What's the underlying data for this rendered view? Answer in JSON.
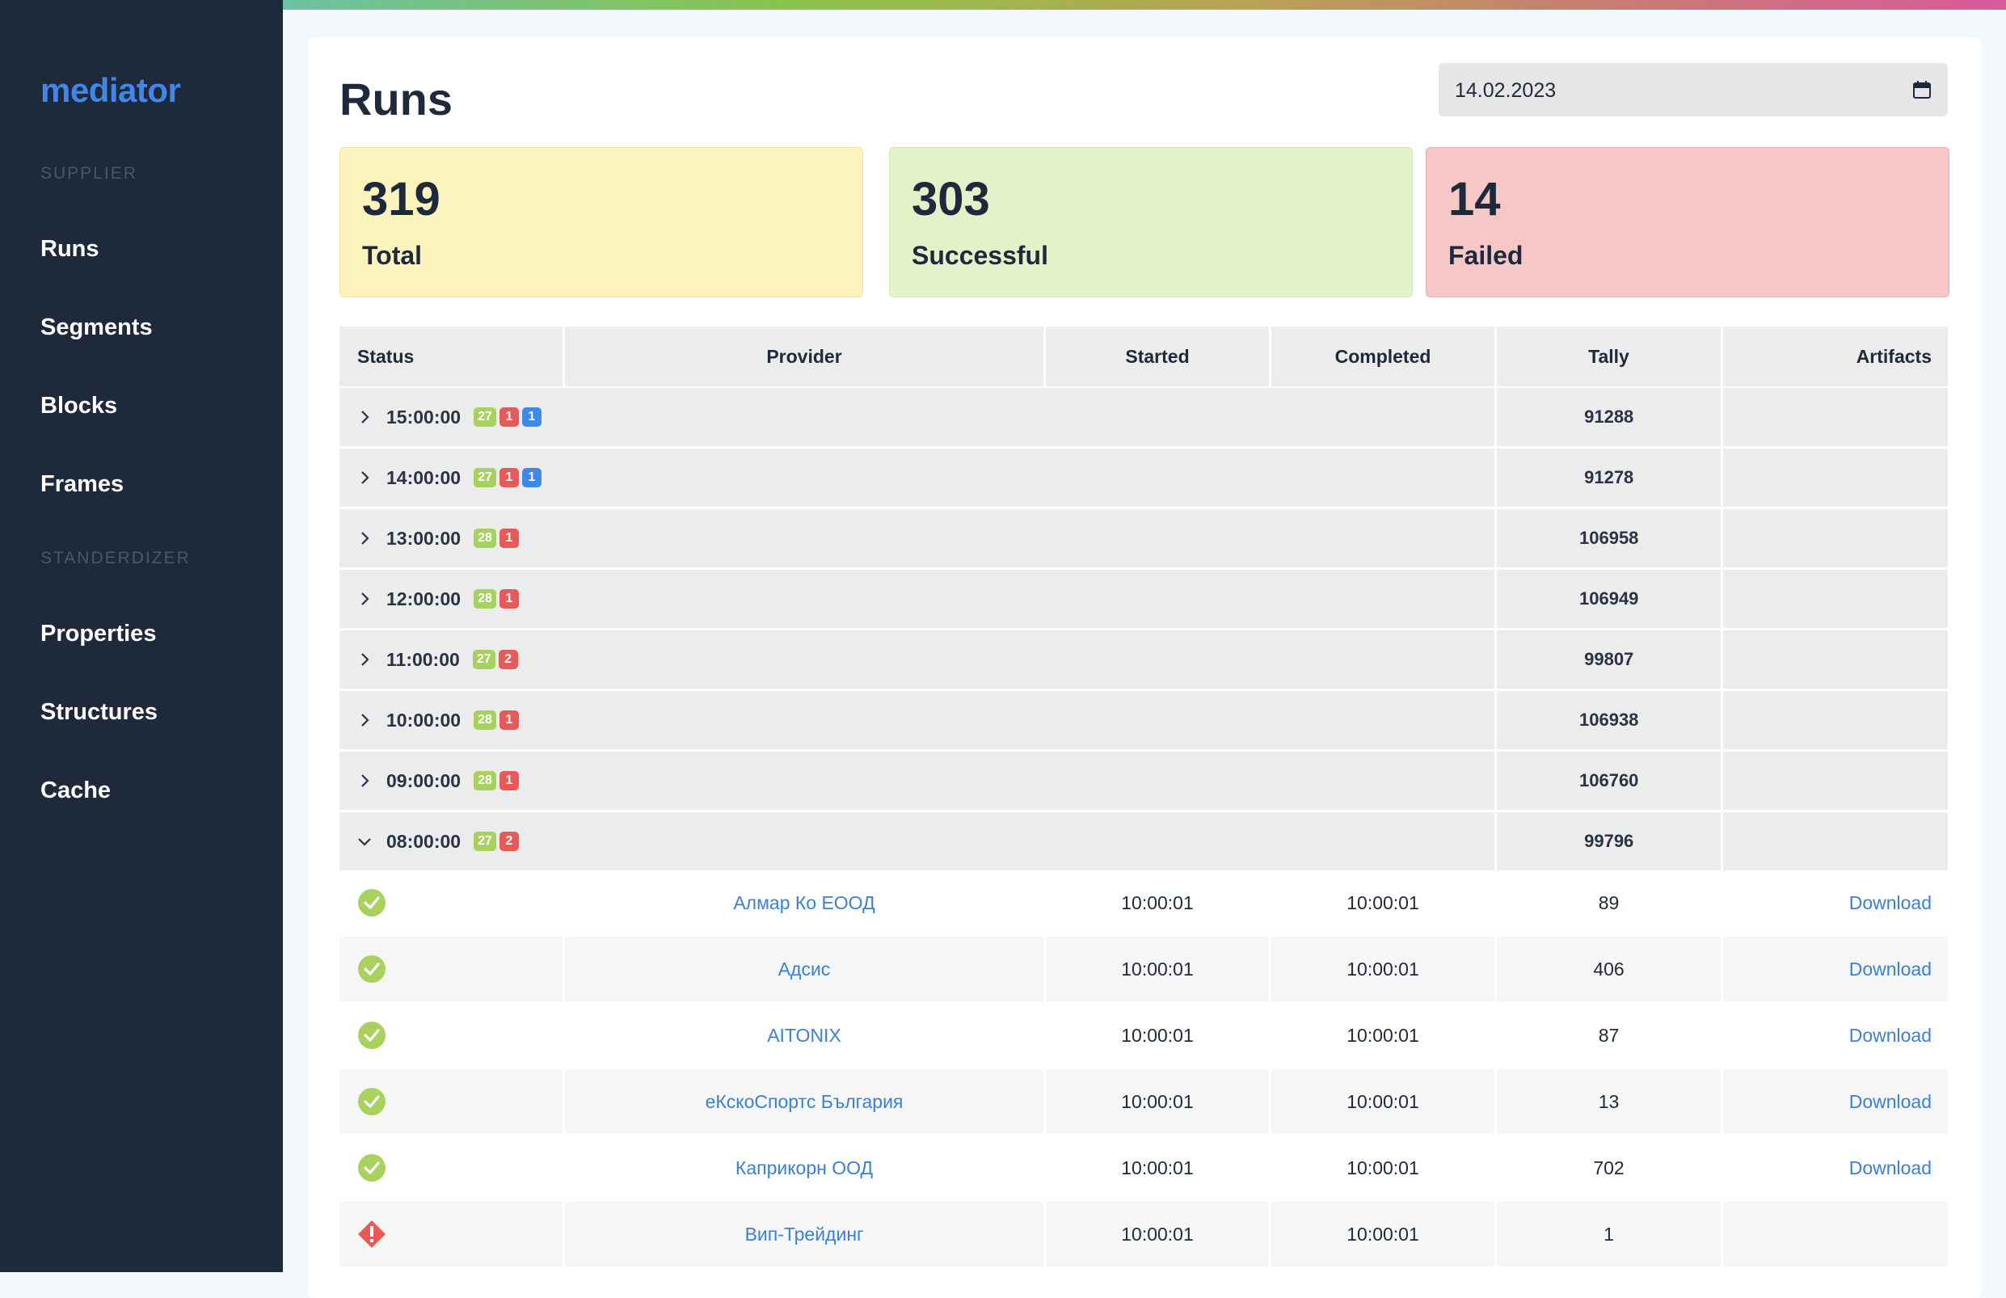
{
  "app": {
    "name": "mediator"
  },
  "sidebar": {
    "sections": [
      {
        "title": "SUPPLIER",
        "items": [
          "Runs",
          "Segments",
          "Blocks",
          "Frames"
        ]
      },
      {
        "title": "STANDERDIZER",
        "items": [
          "Properties",
          "Structures",
          "Cache"
        ]
      }
    ]
  },
  "page": {
    "title": "Runs",
    "date": "14.02.2023",
    "date_icon": "calendar-icon"
  },
  "stats": {
    "total": {
      "value": "319",
      "label": "Total"
    },
    "successful": {
      "value": "303",
      "label": "Successful"
    },
    "failed": {
      "value": "14",
      "label": "Failed"
    }
  },
  "table": {
    "columns": [
      "Status",
      "Provider",
      "Started",
      "Completed",
      "Tally",
      "Artifacts"
    ],
    "groups": [
      {
        "time": "15:00:00",
        "success": "27",
        "failed": "1",
        "other": "1",
        "tally": "91288",
        "expanded": false
      },
      {
        "time": "14:00:00",
        "success": "27",
        "failed": "1",
        "other": "1",
        "tally": "91278",
        "expanded": false
      },
      {
        "time": "13:00:00",
        "success": "28",
        "failed": "1",
        "other": "",
        "tally": "106958",
        "expanded": false
      },
      {
        "time": "12:00:00",
        "success": "28",
        "failed": "1",
        "other": "",
        "tally": "106949",
        "expanded": false
      },
      {
        "time": "11:00:00",
        "success": "27",
        "failed": "2",
        "other": "",
        "tally": "99807",
        "expanded": false
      },
      {
        "time": "10:00:00",
        "success": "28",
        "failed": "1",
        "other": "",
        "tally": "106938",
        "expanded": false
      },
      {
        "time": "09:00:00",
        "success": "28",
        "failed": "1",
        "other": "",
        "tally": "106760",
        "expanded": false
      },
      {
        "time": "08:00:00",
        "success": "27",
        "failed": "2",
        "other": "",
        "tally": "99796",
        "expanded": true
      }
    ],
    "runs": [
      {
        "status": "success",
        "provider": "Алмар Ко ЕООД",
        "started": "10:00:01",
        "completed": "10:00:01",
        "tally": "89",
        "artifact": "Download"
      },
      {
        "status": "success",
        "provider": "Адсис",
        "started": "10:00:01",
        "completed": "10:00:01",
        "tally": "406",
        "artifact": "Download"
      },
      {
        "status": "success",
        "provider": "AITONIX",
        "started": "10:00:01",
        "completed": "10:00:01",
        "tally": "87",
        "artifact": "Download"
      },
      {
        "status": "success",
        "provider": "еКскоСпортс България",
        "started": "10:00:01",
        "completed": "10:00:01",
        "tally": "13",
        "artifact": "Download"
      },
      {
        "status": "success",
        "provider": "Каприкорн ООД",
        "started": "10:00:01",
        "completed": "10:00:01",
        "tally": "702",
        "artifact": "Download"
      },
      {
        "status": "error",
        "provider": "Вип-Трейдинг",
        "started": "10:00:01",
        "completed": "10:00:01",
        "tally": "1",
        "artifact": ""
      }
    ]
  },
  "colors": {
    "sidebar": "#1e293b",
    "accent": "#4287e8",
    "success": "#a8d15e",
    "danger": "#e85a5a",
    "info": "#3f8ae8"
  }
}
